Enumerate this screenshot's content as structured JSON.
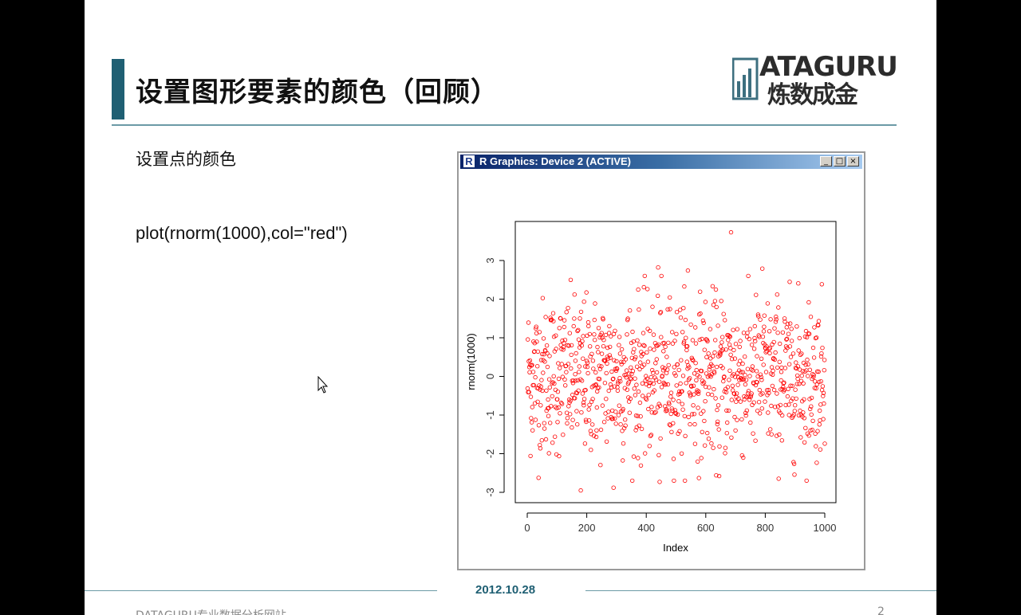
{
  "slide": {
    "title": "设置图形要素的颜色（回顾）",
    "subtitle": "设置点的颜色",
    "code": "plot(rnorm(1000),col=\"red\")",
    "logo_top": "ATAGURU",
    "logo_bottom": "炼数成金",
    "footer_date": "2012.10.28",
    "footer_site": "DATAGURU专业数据分析网站",
    "footer_page": "2",
    "accent_color": "#1f5f73"
  },
  "window": {
    "title": "R Graphics: Device 2 (ACTIVE)",
    "app_icon": "R",
    "minimize_icon": "minimize-icon",
    "maximize_icon": "maximize-icon",
    "close_icon": "close-icon"
  },
  "chart_data": {
    "type": "scatter",
    "xlabel": "Index",
    "ylabel": "rnorm(1000)",
    "xlim": [
      0,
      1000
    ],
    "ylim": [
      -3,
      3.8
    ],
    "x_ticks": [
      "0",
      "200",
      "400",
      "600",
      "800",
      "1000"
    ],
    "y_ticks": [
      "-3",
      "-2",
      "-1",
      "0",
      "1",
      "2",
      "3"
    ],
    "n_points": 1000,
    "point_color": "#ff0000",
    "marker": "open-circle",
    "grid": false,
    "highlights": [
      {
        "x": 685,
        "y": 3.73
      },
      {
        "x": 440,
        "y": 2.82
      },
      {
        "x": 790,
        "y": 2.79
      },
      {
        "x": 540,
        "y": 2.74
      },
      {
        "x": 180,
        "y": -2.95
      },
      {
        "x": 290,
        "y": -2.88
      },
      {
        "x": 445,
        "y": -2.73
      },
      {
        "x": 645,
        "y": -2.58
      }
    ]
  }
}
